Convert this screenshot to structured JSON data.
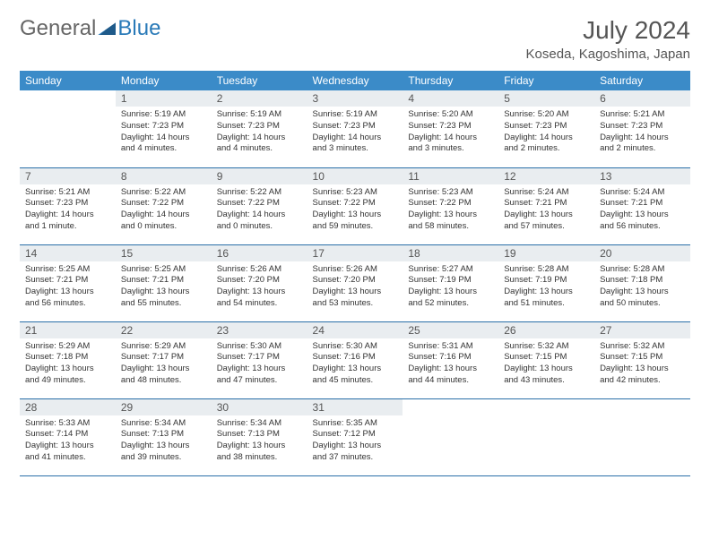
{
  "logo": {
    "part1": "General",
    "part2": "Blue"
  },
  "title": "July 2024",
  "location": "Koseda, Kagoshima, Japan",
  "colors": {
    "header_bg": "#3b8bc8",
    "daynum_bg": "#e9edf0",
    "row_border": "#2a6fa8",
    "text": "#333333",
    "title_text": "#555555"
  },
  "weekdays": [
    "Sunday",
    "Monday",
    "Tuesday",
    "Wednesday",
    "Thursday",
    "Friday",
    "Saturday"
  ],
  "weeks": [
    [
      {
        "n": "",
        "lines": []
      },
      {
        "n": "1",
        "lines": [
          "Sunrise: 5:19 AM",
          "Sunset: 7:23 PM",
          "Daylight: 14 hours and 4 minutes."
        ]
      },
      {
        "n": "2",
        "lines": [
          "Sunrise: 5:19 AM",
          "Sunset: 7:23 PM",
          "Daylight: 14 hours and 4 minutes."
        ]
      },
      {
        "n": "3",
        "lines": [
          "Sunrise: 5:19 AM",
          "Sunset: 7:23 PM",
          "Daylight: 14 hours and 3 minutes."
        ]
      },
      {
        "n": "4",
        "lines": [
          "Sunrise: 5:20 AM",
          "Sunset: 7:23 PM",
          "Daylight: 14 hours and 3 minutes."
        ]
      },
      {
        "n": "5",
        "lines": [
          "Sunrise: 5:20 AM",
          "Sunset: 7:23 PM",
          "Daylight: 14 hours and 2 minutes."
        ]
      },
      {
        "n": "6",
        "lines": [
          "Sunrise: 5:21 AM",
          "Sunset: 7:23 PM",
          "Daylight: 14 hours and 2 minutes."
        ]
      }
    ],
    [
      {
        "n": "7",
        "lines": [
          "Sunrise: 5:21 AM",
          "Sunset: 7:23 PM",
          "Daylight: 14 hours and 1 minute."
        ]
      },
      {
        "n": "8",
        "lines": [
          "Sunrise: 5:22 AM",
          "Sunset: 7:22 PM",
          "Daylight: 14 hours and 0 minutes."
        ]
      },
      {
        "n": "9",
        "lines": [
          "Sunrise: 5:22 AM",
          "Sunset: 7:22 PM",
          "Daylight: 14 hours and 0 minutes."
        ]
      },
      {
        "n": "10",
        "lines": [
          "Sunrise: 5:23 AM",
          "Sunset: 7:22 PM",
          "Daylight: 13 hours and 59 minutes."
        ]
      },
      {
        "n": "11",
        "lines": [
          "Sunrise: 5:23 AM",
          "Sunset: 7:22 PM",
          "Daylight: 13 hours and 58 minutes."
        ]
      },
      {
        "n": "12",
        "lines": [
          "Sunrise: 5:24 AM",
          "Sunset: 7:21 PM",
          "Daylight: 13 hours and 57 minutes."
        ]
      },
      {
        "n": "13",
        "lines": [
          "Sunrise: 5:24 AM",
          "Sunset: 7:21 PM",
          "Daylight: 13 hours and 56 minutes."
        ]
      }
    ],
    [
      {
        "n": "14",
        "lines": [
          "Sunrise: 5:25 AM",
          "Sunset: 7:21 PM",
          "Daylight: 13 hours and 56 minutes."
        ]
      },
      {
        "n": "15",
        "lines": [
          "Sunrise: 5:25 AM",
          "Sunset: 7:21 PM",
          "Daylight: 13 hours and 55 minutes."
        ]
      },
      {
        "n": "16",
        "lines": [
          "Sunrise: 5:26 AM",
          "Sunset: 7:20 PM",
          "Daylight: 13 hours and 54 minutes."
        ]
      },
      {
        "n": "17",
        "lines": [
          "Sunrise: 5:26 AM",
          "Sunset: 7:20 PM",
          "Daylight: 13 hours and 53 minutes."
        ]
      },
      {
        "n": "18",
        "lines": [
          "Sunrise: 5:27 AM",
          "Sunset: 7:19 PM",
          "Daylight: 13 hours and 52 minutes."
        ]
      },
      {
        "n": "19",
        "lines": [
          "Sunrise: 5:28 AM",
          "Sunset: 7:19 PM",
          "Daylight: 13 hours and 51 minutes."
        ]
      },
      {
        "n": "20",
        "lines": [
          "Sunrise: 5:28 AM",
          "Sunset: 7:18 PM",
          "Daylight: 13 hours and 50 minutes."
        ]
      }
    ],
    [
      {
        "n": "21",
        "lines": [
          "Sunrise: 5:29 AM",
          "Sunset: 7:18 PM",
          "Daylight: 13 hours and 49 minutes."
        ]
      },
      {
        "n": "22",
        "lines": [
          "Sunrise: 5:29 AM",
          "Sunset: 7:17 PM",
          "Daylight: 13 hours and 48 minutes."
        ]
      },
      {
        "n": "23",
        "lines": [
          "Sunrise: 5:30 AM",
          "Sunset: 7:17 PM",
          "Daylight: 13 hours and 47 minutes."
        ]
      },
      {
        "n": "24",
        "lines": [
          "Sunrise: 5:30 AM",
          "Sunset: 7:16 PM",
          "Daylight: 13 hours and 45 minutes."
        ]
      },
      {
        "n": "25",
        "lines": [
          "Sunrise: 5:31 AM",
          "Sunset: 7:16 PM",
          "Daylight: 13 hours and 44 minutes."
        ]
      },
      {
        "n": "26",
        "lines": [
          "Sunrise: 5:32 AM",
          "Sunset: 7:15 PM",
          "Daylight: 13 hours and 43 minutes."
        ]
      },
      {
        "n": "27",
        "lines": [
          "Sunrise: 5:32 AM",
          "Sunset: 7:15 PM",
          "Daylight: 13 hours and 42 minutes."
        ]
      }
    ],
    [
      {
        "n": "28",
        "lines": [
          "Sunrise: 5:33 AM",
          "Sunset: 7:14 PM",
          "Daylight: 13 hours and 41 minutes."
        ]
      },
      {
        "n": "29",
        "lines": [
          "Sunrise: 5:34 AM",
          "Sunset: 7:13 PM",
          "Daylight: 13 hours and 39 minutes."
        ]
      },
      {
        "n": "30",
        "lines": [
          "Sunrise: 5:34 AM",
          "Sunset: 7:13 PM",
          "Daylight: 13 hours and 38 minutes."
        ]
      },
      {
        "n": "31",
        "lines": [
          "Sunrise: 5:35 AM",
          "Sunset: 7:12 PM",
          "Daylight: 13 hours and 37 minutes."
        ]
      },
      {
        "n": "",
        "lines": []
      },
      {
        "n": "",
        "lines": []
      },
      {
        "n": "",
        "lines": []
      }
    ]
  ]
}
